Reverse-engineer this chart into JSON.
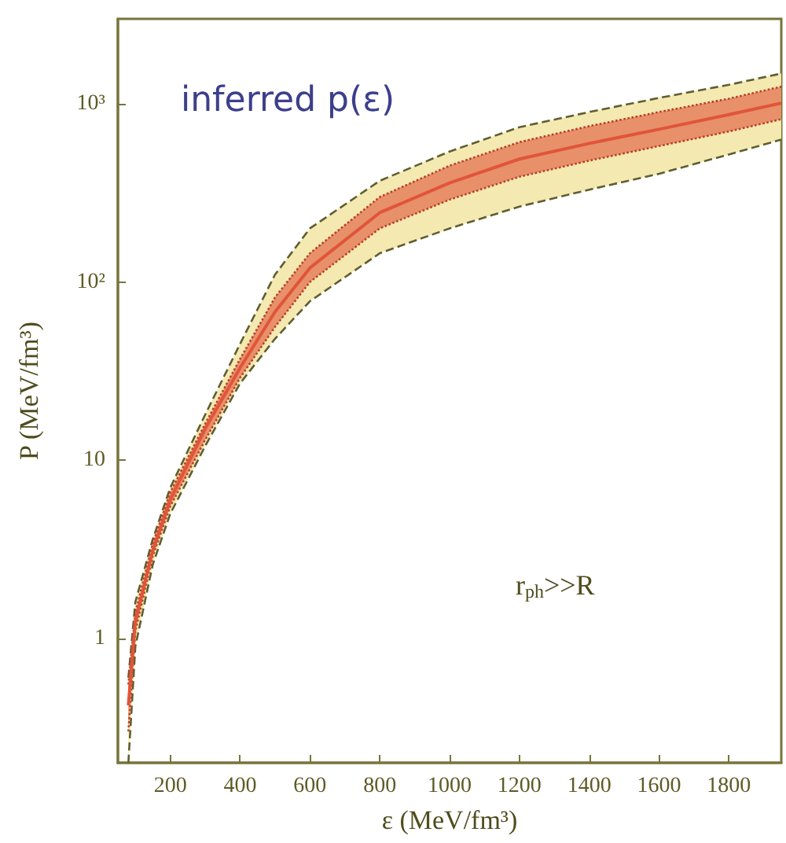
{
  "chart_data": {
    "type": "line",
    "title": "inferred p(ε)",
    "xlabel": "ε (MeV/fm³)",
    "ylabel": "P (MeV/fm³)",
    "x": [
      80,
      100,
      150,
      200,
      300,
      400,
      500,
      600,
      800,
      1000,
      1200,
      1400,
      1600,
      1800,
      1950
    ],
    "series": [
      {
        "color": "#5f5e30",
        "line_style": "dashed",
        "values": [
          0.6,
          1.6,
          3.6,
          7,
          18,
          45,
          110,
          200,
          370,
          540,
          740,
          900,
          1080,
          1280,
          1480
        ],
        "lower": [
          0.2,
          0.9,
          2.6,
          5,
          12,
          27,
          48,
          78,
          145,
          200,
          265,
          330,
          405,
          520,
          630
        ],
        "upper": [
          0.6,
          1.6,
          3.6,
          7,
          18,
          45,
          110,
          200,
          370,
          540,
          740,
          900,
          1080,
          1280,
          1480
        ]
      },
      {
        "color": "#5f5e30",
        "line_style": "dashed",
        "values": [
          0.2,
          0.9,
          2.6,
          5,
          12,
          27,
          48,
          78,
          145,
          200,
          265,
          330,
          405,
          520,
          630
        ]
      },
      {
        "color": "#b8402c",
        "line_style": "dotted",
        "values": [
          0.55,
          1.4,
          3.4,
          6.6,
          16,
          37,
          82,
          145,
          300,
          450,
          610,
          750,
          900,
          1070,
          1250
        ]
      },
      {
        "color": "#b8402c",
        "line_style": "dotted",
        "values": [
          0.3,
          1.1,
          2.9,
          5.5,
          13,
          29,
          56,
          100,
          200,
          290,
          390,
          480,
          580,
          700,
          820
        ]
      },
      {
        "color": "#e0553a",
        "line_style": "solid",
        "values": [
          0.42,
          1.25,
          3.1,
          6,
          15,
          33,
          68,
          120,
          245,
          360,
          490,
          600,
          720,
          870,
          1010
        ],
        "lower": [
          0.3,
          1.1,
          2.9,
          5.5,
          13,
          29,
          56,
          100,
          200,
          290,
          390,
          480,
          580,
          700,
          820
        ],
        "upper": [
          0.55,
          1.4,
          3.4,
          6.6,
          16,
          37,
          82,
          145,
          300,
          450,
          610,
          750,
          900,
          1070,
          1250
        ]
      }
    ],
    "log": "y",
    "xlim": [
      50,
      1950
    ],
    "ylim": [
      0.2,
      3000
    ],
    "xticks": [
      200,
      400,
      600,
      800,
      1000,
      1200,
      1400,
      1600,
      1800
    ],
    "yticks": [
      1,
      10,
      {
        "value": 100,
        "label": "10²"
      },
      {
        "value": 1000,
        "label": "10³"
      }
    ],
    "grid": false,
    "annotations": [
      "r$_{ph}$>>R"
    ]
  }
}
